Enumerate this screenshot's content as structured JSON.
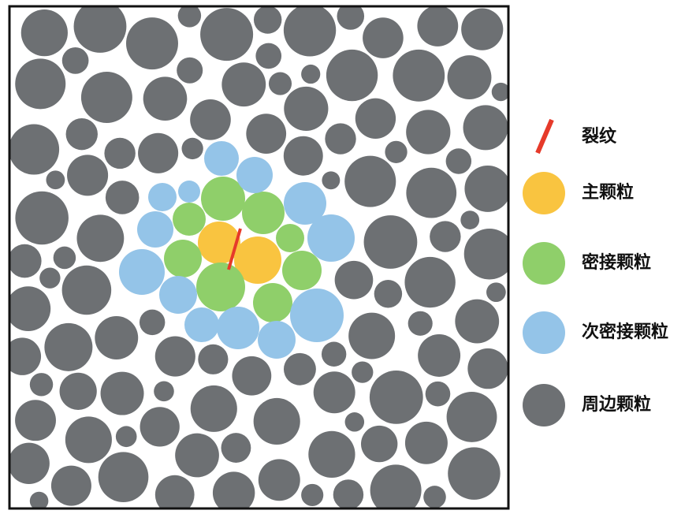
{
  "legend": [
    "裂纹",
    "主颗粒",
    "密接颗粒",
    "次密接颗粒",
    "周边颗粒"
  ]
}
